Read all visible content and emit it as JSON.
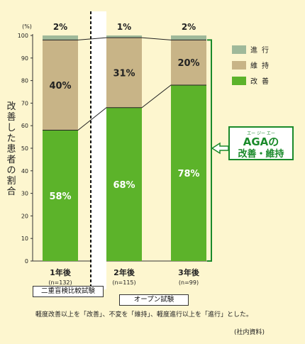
{
  "chart_data": {
    "type": "bar",
    "stacked": true,
    "ylabel": "改善した患者の割合",
    "yunit": "(%)",
    "ylim": [
      0,
      100
    ],
    "yticks": [
      0,
      10,
      20,
      30,
      40,
      50,
      60,
      70,
      80,
      90,
      100
    ],
    "categories": [
      "1年後",
      "2年後",
      "3年後"
    ],
    "sample_sizes": [
      "(n=132)",
      "(n=115)",
      "(n=99)"
    ],
    "series": [
      {
        "name": "改善",
        "color": "#5cb32a",
        "values": [
          58,
          68,
          78
        ],
        "labels": [
          "58%",
          "68%",
          "78%"
        ]
      },
      {
        "name": "維持",
        "color": "#c8b487",
        "values": [
          40,
          31,
          20
        ],
        "labels": [
          "40%",
          "31%",
          "20%"
        ]
      },
      {
        "name": "進行",
        "color": "#9fb99a",
        "values": [
          2,
          1,
          2
        ],
        "labels": [
          "2%",
          "1%",
          "2%"
        ]
      }
    ],
    "legend": [
      {
        "name": "進行",
        "color": "#9fb99a"
      },
      {
        "name": "維持",
        "color": "#c8b487"
      },
      {
        "name": "改善",
        "color": "#5cb32a"
      }
    ],
    "legend_position": "right",
    "grid": false,
    "callout": {
      "ruby": "エー ジー エー",
      "line1": "AGAの",
      "line2": "改善・維持"
    }
  },
  "trials": {
    "double_blind": "二重盲検比較試験",
    "open": "オープン試験"
  },
  "footnote": "軽度改善以上を「改善」、不変を「維持」、軽度進行以上を「進行」とした。",
  "source": "(社内資料)",
  "colors": {
    "background": "#fdf6cf",
    "callout": "#1a8a2a",
    "axis": "#333333"
  }
}
